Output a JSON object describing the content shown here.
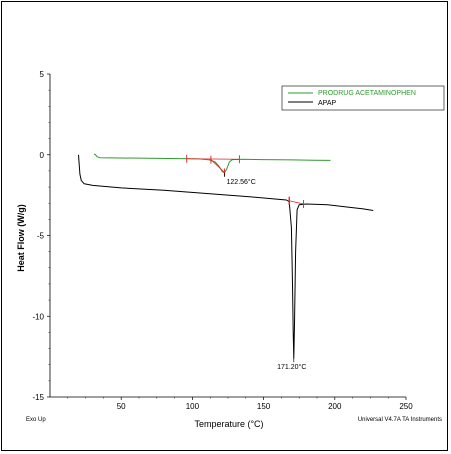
{
  "chart_data": {
    "type": "line",
    "xlabel": "Temperature (°C)",
    "ylabel": "Heat Flow (W/g)",
    "xlim": [
      0,
      250
    ],
    "ylim": [
      -15,
      5
    ],
    "xticks": [
      "50",
      "100",
      "150",
      "200",
      "250"
    ],
    "yticks": [
      "5",
      "0",
      "-5",
      "-10",
      "-15"
    ],
    "footer_left": "Exo Up",
    "footer_right": "Universal V4.7A TA Instruments",
    "grid": false,
    "legend_position": "top-right",
    "series": [
      {
        "name": "PRODRUG ACETAMINOPHEN",
        "color": "#2e9a2e",
        "points": [
          [
            31,
            0.05
          ],
          [
            32,
            0
          ],
          [
            33,
            -0.12
          ],
          [
            35,
            -0.18
          ],
          [
            50,
            -0.2
          ],
          [
            70,
            -0.22
          ],
          [
            90,
            -0.24
          ],
          [
            105,
            -0.26
          ],
          [
            112,
            -0.32
          ],
          [
            116,
            -0.45
          ],
          [
            119,
            -0.75
          ],
          [
            121,
            -1.05
          ],
          [
            122.56,
            -1.12
          ],
          [
            124,
            -0.9
          ],
          [
            126,
            -0.45
          ],
          [
            128,
            -0.3
          ],
          [
            135,
            -0.28
          ],
          [
            150,
            -0.3
          ],
          [
            170,
            -0.32
          ],
          [
            185,
            -0.34
          ],
          [
            197,
            -0.35
          ]
        ]
      },
      {
        "name": "APAP",
        "color": "#000000",
        "points": [
          [
            20,
            0
          ],
          [
            20.5,
            -0.6
          ],
          [
            21,
            -1.2
          ],
          [
            22,
            -1.6
          ],
          [
            24,
            -1.8
          ],
          [
            30,
            -1.9
          ],
          [
            50,
            -2.05
          ],
          [
            80,
            -2.2
          ],
          [
            110,
            -2.4
          ],
          [
            140,
            -2.6
          ],
          [
            160,
            -2.75
          ],
          [
            166,
            -2.8
          ],
          [
            168,
            -2.9
          ],
          [
            169.5,
            -4.5
          ],
          [
            170.3,
            -8
          ],
          [
            170.8,
            -11
          ],
          [
            171.2,
            -12.6
          ],
          [
            171.7,
            -10.5
          ],
          [
            172.5,
            -6
          ],
          [
            173.5,
            -3.4
          ],
          [
            175,
            -3.1
          ],
          [
            180,
            -3.05
          ],
          [
            195,
            -3.1
          ],
          [
            210,
            -3.25
          ],
          [
            220,
            -3.35
          ],
          [
            227,
            -3.45
          ]
        ]
      }
    ],
    "annotations": [
      {
        "text": "122.56°C",
        "x": 122.56,
        "y": -1.12
      },
      {
        "text": "171.20°C",
        "x": 171.2,
        "y": -12.6
      }
    ],
    "markers": [
      {
        "series": 0,
        "from": [
          96,
          -0.25
        ],
        "to": [
          133,
          -0.28
        ]
      },
      {
        "series": 0,
        "from": [
          113,
          -0.3
        ],
        "to": [
          122.56,
          -1.1
        ]
      },
      {
        "series": 1,
        "from": [
          168,
          -2.85
        ],
        "to": [
          178,
          -3.05
        ]
      },
      {
        "series": 1,
        "from": [
          168,
          -2.85
        ],
        "to": [
          168,
          -2.85
        ]
      }
    ]
  }
}
